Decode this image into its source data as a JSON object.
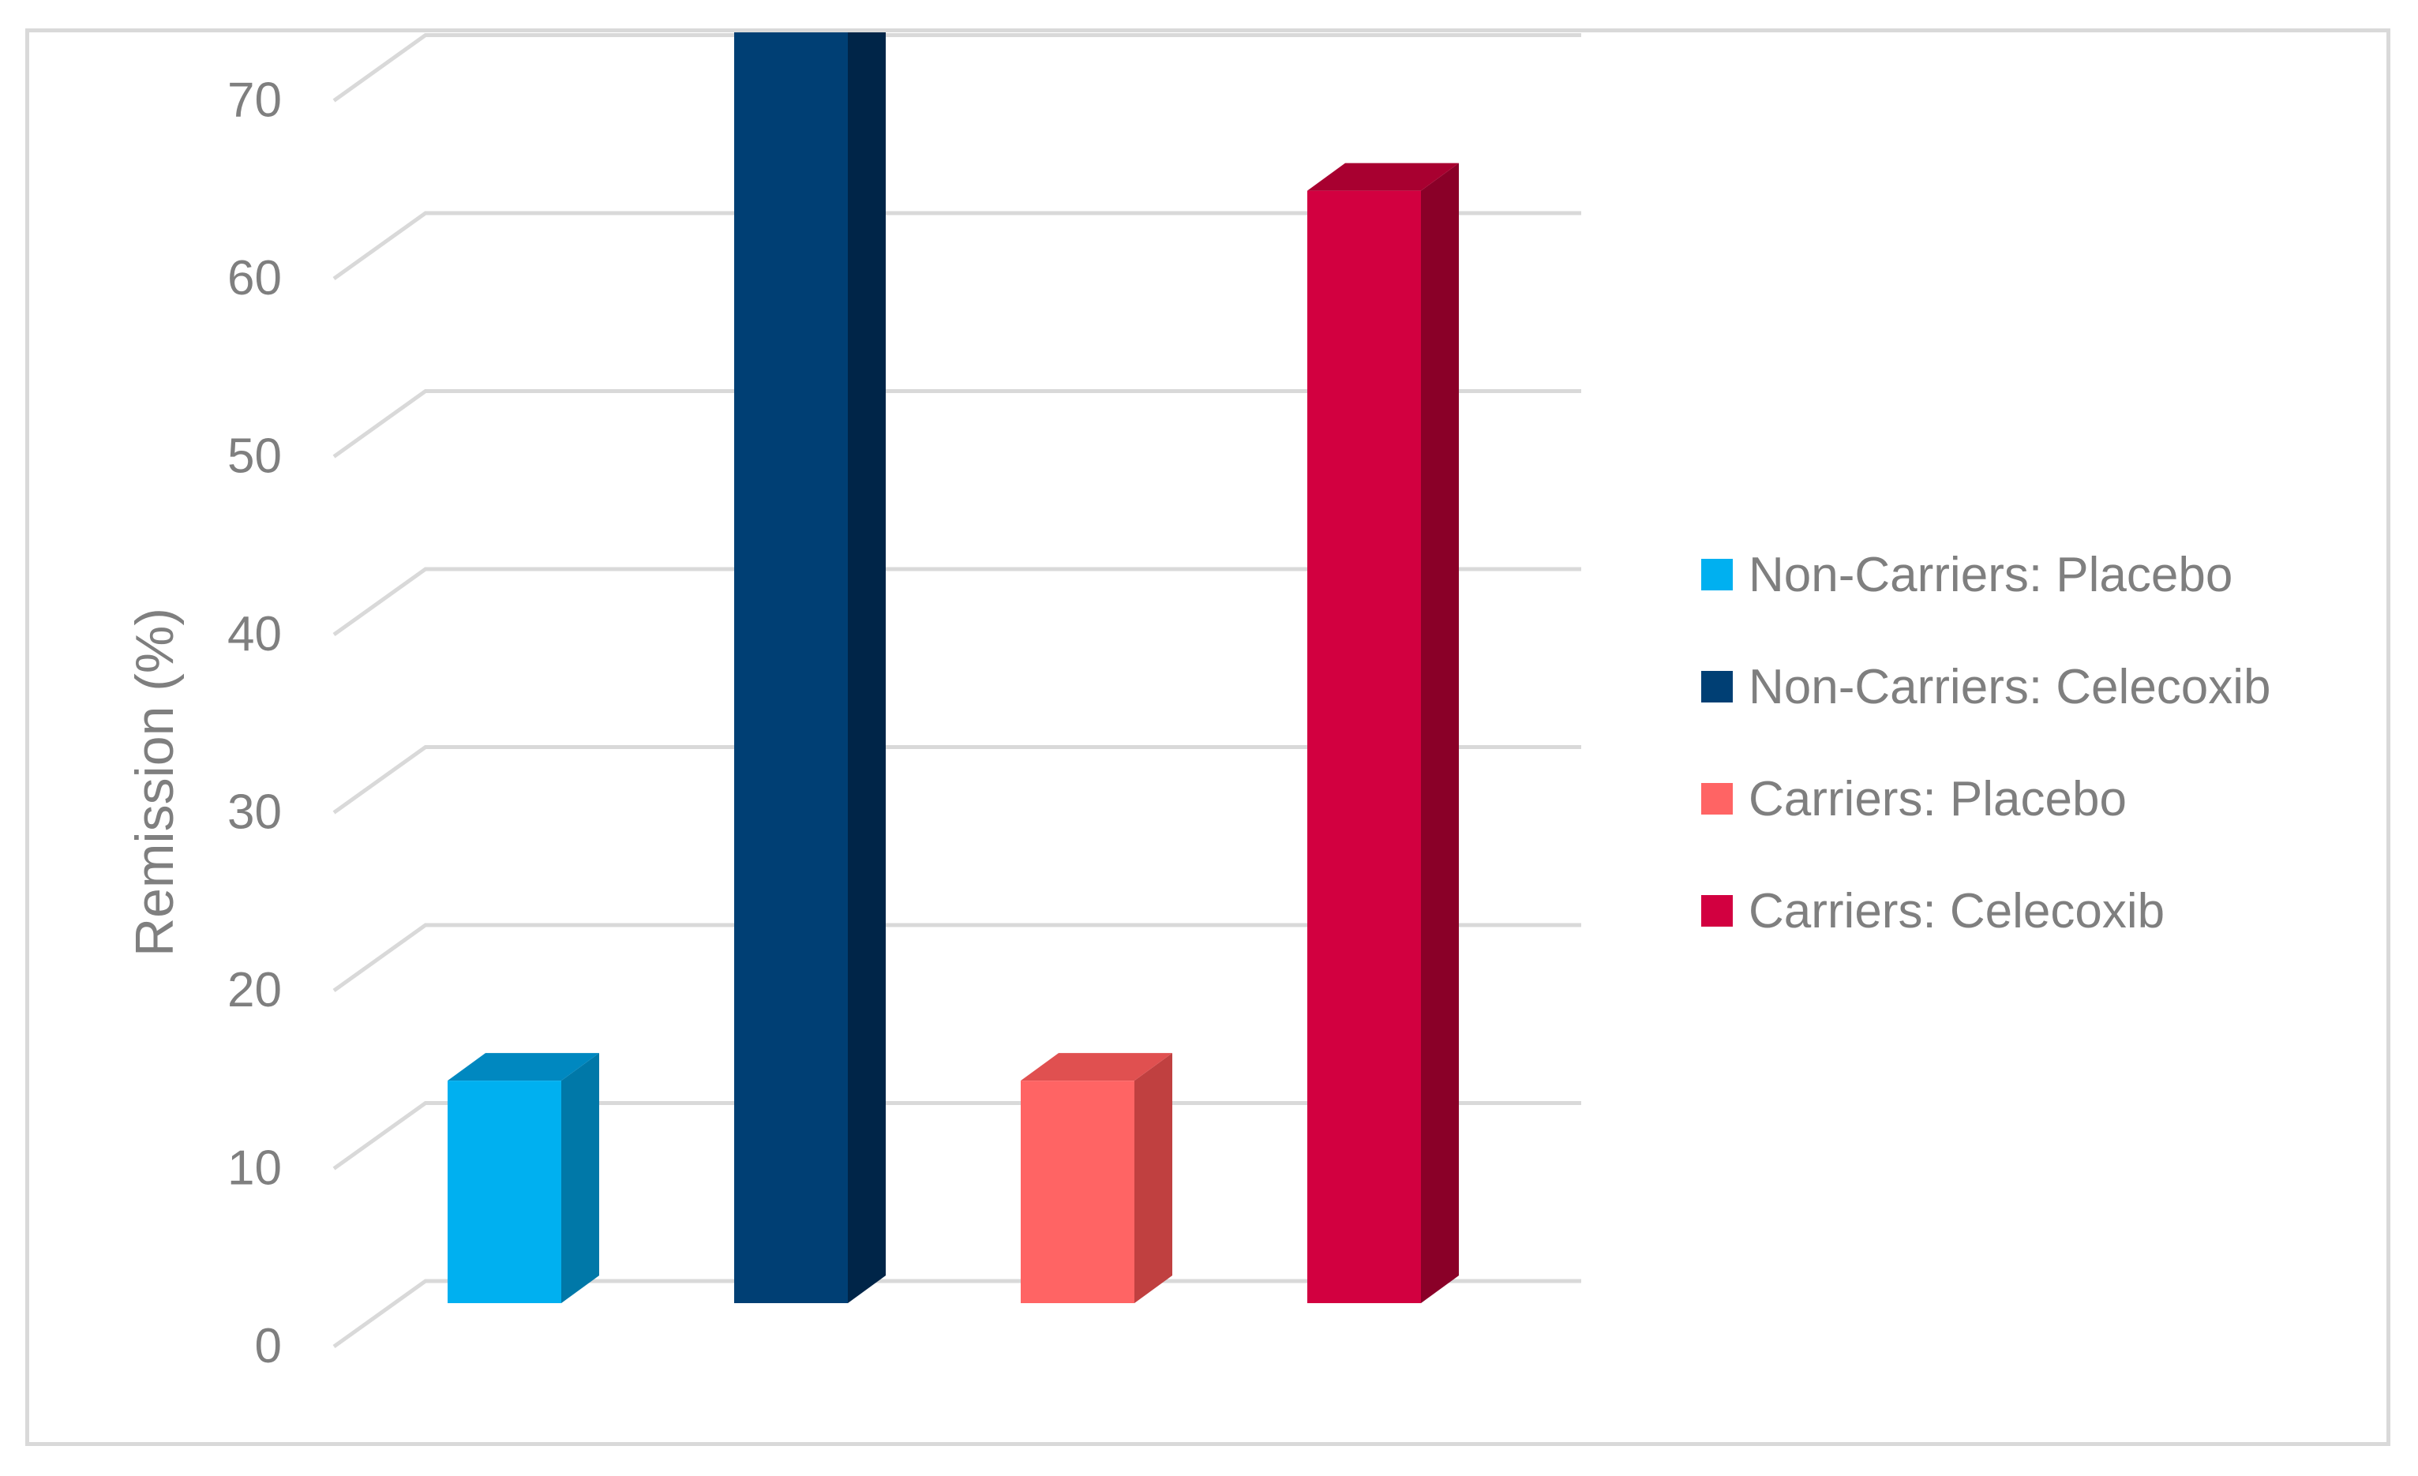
{
  "chart_data": {
    "type": "bar",
    "style": "3d-column",
    "title": "",
    "xlabel": "",
    "ylabel": "Remission (%)",
    "ylim": [
      0,
      80
    ],
    "yticks": [
      0,
      10,
      20,
      30,
      40,
      50,
      60,
      70,
      80
    ],
    "grid": true,
    "legend_position": "right",
    "categories": [
      "Non-Carriers: Placebo",
      "Non-Carriers: Celecoxib",
      "Carriers: Placebo",
      "Carriers: Celecoxib"
    ],
    "series": [
      {
        "name": "Non-Carriers: Placebo",
        "value": 12.5,
        "color": "#00b0f0",
        "side_color": "#0078a8",
        "top_color": "#0088c0"
      },
      {
        "name": "Non-Carriers: Celecoxib",
        "value": 78,
        "color": "#003f74",
        "side_color": "#002548",
        "top_color": "#003060"
      },
      {
        "name": "Carriers: Placebo",
        "value": 12.5,
        "color": "#ff6464",
        "side_color": "#c04040",
        "top_color": "#e05050"
      },
      {
        "name": "Carriers: Celecoxib",
        "value": 62.5,
        "color": "#d20040",
        "side_color": "#8a0028",
        "top_color": "#a80030"
      }
    ]
  }
}
